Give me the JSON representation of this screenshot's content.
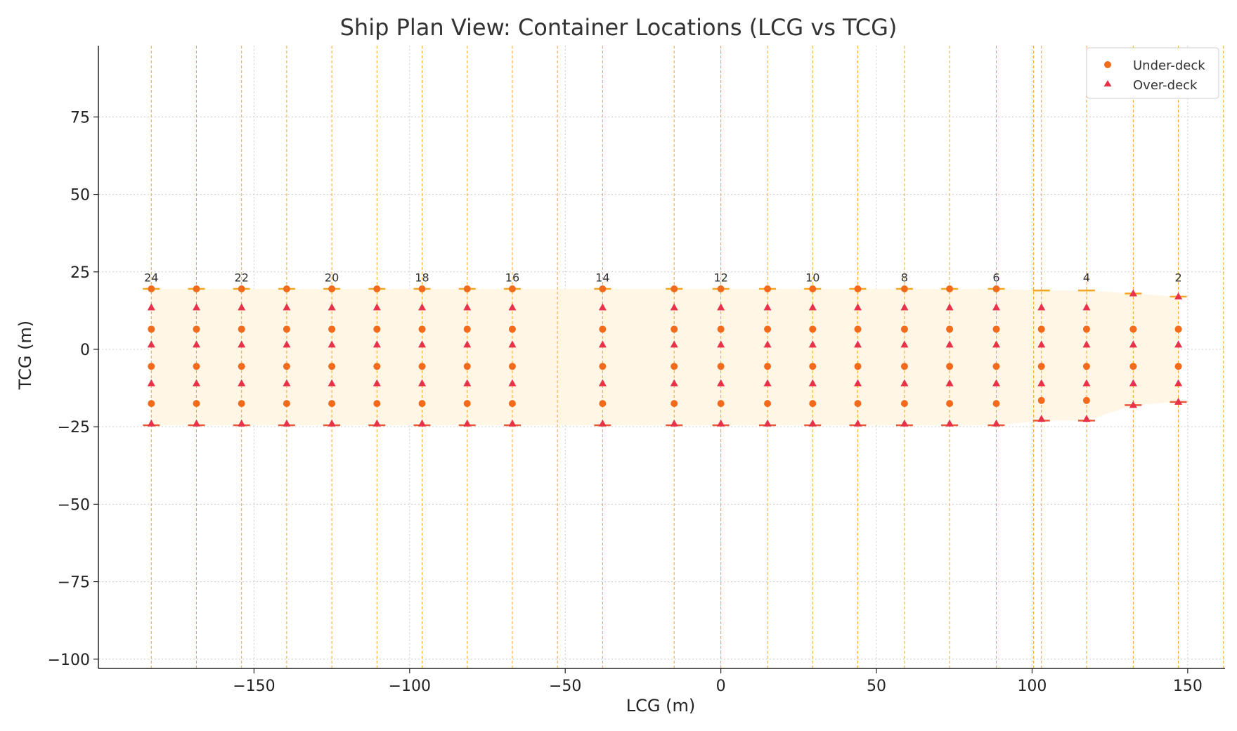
{
  "chart_data": {
    "type": "scatter",
    "title": "Ship Plan View: Container Locations (LCG vs TCG)",
    "xlabel": "LCG (m)",
    "ylabel": "TCG (m)",
    "xlim": [
      -200,
      162
    ],
    "ylim": [
      -103,
      98
    ],
    "x_ticks": [
      -150,
      -100,
      -50,
      0,
      50,
      100,
      150
    ],
    "y_ticks": [
      -100,
      -75,
      -50,
      -25,
      0,
      25,
      50,
      75
    ],
    "grid": true,
    "legend_position": "top-right",
    "bay_x": [
      -183,
      -168.5,
      -154,
      -139.5,
      -125,
      -110.5,
      -96,
      -81.5,
      -67,
      -38,
      -15,
      0,
      15,
      29.5,
      44,
      59,
      73.5,
      88.5,
      103,
      117.5,
      132.5,
      147
    ],
    "bay_guides": [
      -183,
      -168.5,
      -154,
      -139.5,
      -125,
      -110.5,
      -96,
      -81.5,
      -67,
      -52.5,
      -38,
      -15,
      0,
      15,
      29.5,
      44,
      59,
      73.5,
      88.5,
      100.5,
      103,
      117.5,
      132.5,
      147,
      161.5
    ],
    "bay_labels": [
      {
        "x": -183,
        "label": "24"
      },
      {
        "x": -154,
        "label": "22"
      },
      {
        "x": -125,
        "label": "20"
      },
      {
        "x": -96,
        "label": "18"
      },
      {
        "x": -67,
        "label": "16"
      },
      {
        "x": -38,
        "label": "14"
      },
      {
        "x": 0,
        "label": "12"
      },
      {
        "x": 29.5,
        "label": "10"
      },
      {
        "x": 59,
        "label": "8"
      },
      {
        "x": 88.5,
        "label": "6"
      },
      {
        "x": 117.5,
        "label": "4"
      },
      {
        "x": 147,
        "label": "2"
      }
    ],
    "hull_outline": {
      "upper": [
        [
          -183,
          19.5
        ],
        [
          88.5,
          19.5
        ],
        [
          103,
          19
        ],
        [
          117.5,
          19
        ],
        [
          132.5,
          18
        ],
        [
          147,
          17
        ]
      ],
      "lower": [
        [
          -183,
          -24.5
        ],
        [
          88.5,
          -24.5
        ],
        [
          103,
          -23
        ],
        [
          117.5,
          -23
        ],
        [
          132.5,
          -18
        ],
        [
          147,
          -17
        ]
      ]
    },
    "edge_markers": {
      "upper": [
        19.5,
        19.5,
        19.5,
        19.5,
        19.5,
        19.5,
        19.5,
        19.5,
        19.5,
        19.5,
        19.5,
        19.5,
        19.5,
        19.5,
        19.5,
        19.5,
        19.5,
        19.5,
        19,
        19,
        18,
        17
      ],
      "lower": [
        -24.5,
        -24.5,
        -24.5,
        -24.5,
        -24.5,
        -24.5,
        -24.5,
        -24.5,
        -24.5,
        -24.5,
        -24.5,
        -24.5,
        -24.5,
        -24.5,
        -24.5,
        -24.5,
        -24.5,
        -24.5,
        -23,
        -23,
        -18,
        -17
      ]
    },
    "series": [
      {
        "name": "Under-deck",
        "marker": "circle",
        "color": "#f26b1d",
        "tcg_by_bay": [
          [
            19.5,
            6.5,
            -5.5,
            -17.5
          ],
          [
            19.5,
            6.5,
            -5.5,
            -17.5
          ],
          [
            19.5,
            6.5,
            -5.5,
            -17.5
          ],
          [
            19.5,
            6.5,
            -5.5,
            -17.5
          ],
          [
            19.5,
            6.5,
            -5.5,
            -17.5
          ],
          [
            19.5,
            6.5,
            -5.5,
            -17.5
          ],
          [
            19.5,
            6.5,
            -5.5,
            -17.5
          ],
          [
            19.5,
            6.5,
            -5.5,
            -17.5
          ],
          [
            19.5,
            6.5,
            -5.5,
            -17.5
          ],
          [
            19.5,
            6.5,
            -5.5,
            -17.5
          ],
          [
            19.5,
            6.5,
            -5.5,
            -17.5
          ],
          [
            19.5,
            6.5,
            -5.5,
            -17.5
          ],
          [
            19.5,
            6.5,
            -5.5,
            -17.5
          ],
          [
            19.5,
            6.5,
            -5.5,
            -17.5
          ],
          [
            19.5,
            6.5,
            -5.5,
            -17.5
          ],
          [
            19.5,
            6.5,
            -5.5,
            -17.5
          ],
          [
            19.5,
            6.5,
            -5.5,
            -17.5
          ],
          [
            19.5,
            6.5,
            -5.5,
            -17.5
          ],
          [
            6.5,
            -5.5,
            -16.5
          ],
          [
            6.5,
            -5.5,
            -16.5
          ],
          [
            6.5,
            -5.5
          ],
          [
            6.5,
            -5.5
          ]
        ]
      },
      {
        "name": "Over-deck",
        "marker": "triangle",
        "color": "#e8324a",
        "tcg_by_bay": [
          [
            13.5,
            1.5,
            -11,
            -24
          ],
          [
            13.5,
            1.5,
            -11,
            -24
          ],
          [
            13.5,
            1.5,
            -11,
            -24
          ],
          [
            13.5,
            1.5,
            -11,
            -24
          ],
          [
            13.5,
            1.5,
            -11,
            -24
          ],
          [
            13.5,
            1.5,
            -11,
            -24
          ],
          [
            13.5,
            1.5,
            -11,
            -24
          ],
          [
            13.5,
            1.5,
            -11,
            -24
          ],
          [
            13.5,
            1.5,
            -11,
            -24
          ],
          [
            13.5,
            1.5,
            -11,
            -24
          ],
          [
            13.5,
            1.5,
            -11,
            -24
          ],
          [
            13.5,
            1.5,
            -11,
            -24
          ],
          [
            13.5,
            1.5,
            -11,
            -24
          ],
          [
            13.5,
            1.5,
            -11,
            -24
          ],
          [
            13.5,
            1.5,
            -11,
            -24
          ],
          [
            13.5,
            1.5,
            -11,
            -24
          ],
          [
            13.5,
            1.5,
            -11,
            -24
          ],
          [
            13.5,
            1.5,
            -11,
            -24
          ],
          [
            13.5,
            1.5,
            -11,
            -22.5
          ],
          [
            13.5,
            1.5,
            -11,
            -22.5
          ],
          [
            18,
            1.5,
            -11,
            -18
          ],
          [
            17,
            1.5,
            -11,
            -17
          ]
        ]
      }
    ],
    "colors": {
      "hull_fill": "#fff6e6",
      "bay_guide": "#f5a623",
      "grid": "#cccccc",
      "edge_upper": "#f5a623",
      "edge_lower": "#e85a3a"
    }
  }
}
